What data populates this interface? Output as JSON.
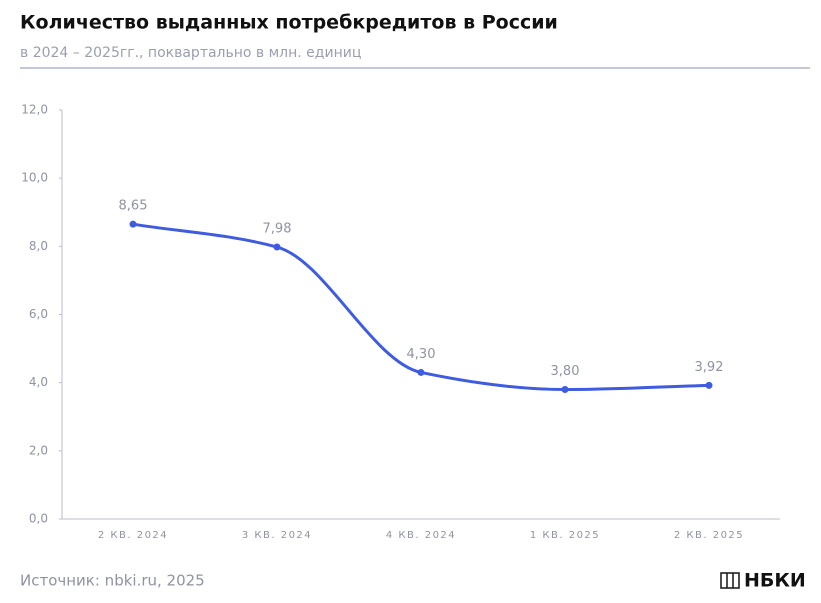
{
  "chart_data": {
    "type": "line",
    "title": "Количество выданных потребкредитов в России",
    "subtitle": "в 2024 – 2025гг., поквартально в млн. единиц",
    "categories": [
      "2 КВ. 2024",
      "3 КВ. 2024",
      "4 КВ. 2024",
      "1 КВ. 2025",
      "2 КВ. 2025"
    ],
    "series": [
      {
        "color": "#3f5ce0",
        "values": [
          8.65,
          7.98,
          4.3,
          3.8,
          3.92
        ],
        "value_labels": [
          "8,65",
          "7,98",
          "4,30",
          "3,80",
          "3,92"
        ]
      }
    ],
    "ylim": [
      0,
      12
    ],
    "yticks": [
      {
        "value": 0,
        "label": "0,0"
      },
      {
        "value": 2,
        "label": "2,0"
      },
      {
        "value": 4,
        "label": "4,0"
      },
      {
        "value": 6,
        "label": "6,0"
      },
      {
        "value": 8,
        "label": "8,0"
      },
      {
        "value": 10,
        "label": "10,0"
      },
      {
        "value": 12,
        "label": "12,0"
      }
    ],
    "source": "Источник: nbki.ru, 2025",
    "logo": "НБКИ"
  }
}
